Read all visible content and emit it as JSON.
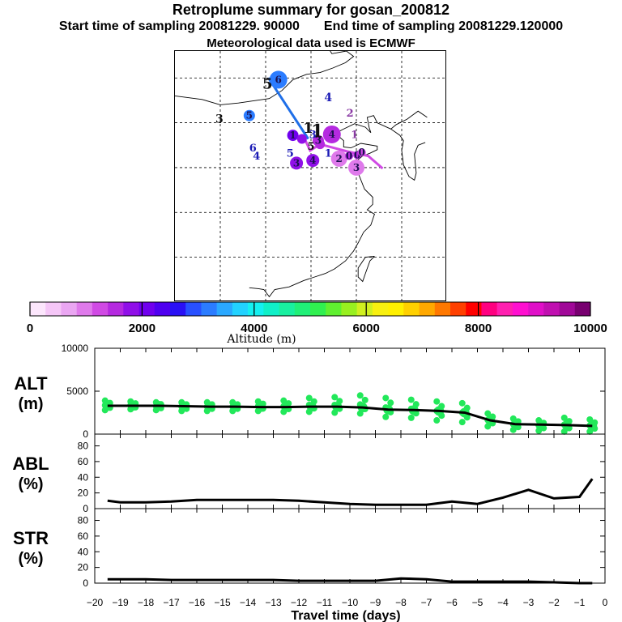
{
  "header": {
    "title": "Retroplume summary for gosan_200812",
    "start_label": "Start time of sampling 20081229. 90000",
    "end_label": "End time of sampling 20081229.120000",
    "met_label": "Meteorological data used is ECMWF"
  },
  "colorbar": {
    "label": "Altitude (m)",
    "ticks": [
      0,
      2000,
      4000,
      6000,
      8000,
      10000
    ],
    "range": [
      0,
      10000
    ],
    "colors": [
      "#fce6fc",
      "#f5c6f7",
      "#eaa6f2",
      "#df7aeb",
      "#d04ae4",
      "#b52ae0",
      "#9010e8",
      "#7000ee",
      "#4f00f0",
      "#2a10f5",
      "#2850ff",
      "#2b7cff",
      "#2aa8ff",
      "#22d2ff",
      "#14f0f0",
      "#10f0c8",
      "#18f0a0",
      "#20f078",
      "#30f050",
      "#60f030",
      "#98f020",
      "#d0f020",
      "#f8f010",
      "#fff000",
      "#ffd000",
      "#ffa800",
      "#ff7800",
      "#ff4000",
      "#ff0000",
      "#ff0080",
      "#ff20b0",
      "#ff10d0",
      "#e010c8",
      "#c010b0",
      "#a00898",
      "#780070"
    ]
  },
  "map": {
    "numbers": [
      {
        "t": "5",
        "lon": 110.2,
        "lat": 43.8,
        "size": 18,
        "color": "#111111",
        "serif": true
      },
      {
        "t": "4",
        "lon": 116.9,
        "lat": 42.4,
        "size": 14,
        "color": "#1a1ab5",
        "serif": true
      },
      {
        "t": "3",
        "lon": 104.9,
        "lat": 40.0,
        "size": 14,
        "color": "#111111",
        "serif": true
      },
      {
        "t": "2",
        "lon": 119.3,
        "lat": 40.7,
        "size": 13,
        "color": "#8a3aa4",
        "serif": true
      },
      {
        "t": "6",
        "lon": 108.6,
        "lat": 36.8,
        "size": 13,
        "color": "#1a1ab5",
        "serif": true
      },
      {
        "t": "4",
        "lon": 109.0,
        "lat": 35.9,
        "size": 13,
        "color": "#1a1ab5",
        "serif": true
      },
      {
        "t": "5",
        "lon": 112.7,
        "lat": 36.2,
        "size": 13,
        "color": "#1a1ab5",
        "serif": true
      },
      {
        "t": "1",
        "lon": 114.7,
        "lat": 38.9,
        "size": 18,
        "color": "#111111",
        "serif": true
      },
      {
        "t": "1",
        "lon": 115.7,
        "lat": 38.4,
        "size": 22,
        "color": "#111111",
        "serif": true
      },
      {
        "t": "3",
        "lon": 115.2,
        "lat": 38.3,
        "size": 13,
        "color": "#1a1ab5",
        "serif": true
      },
      {
        "t": "5",
        "lon": 115.0,
        "lat": 37.0,
        "size": 13,
        "color": "#111111",
        "serif": true
      },
      {
        "t": "1",
        "lon": 116.9,
        "lat": 36.2,
        "size": 13,
        "color": "#1a1ab5",
        "serif": true
      },
      {
        "t": "1",
        "lon": 119.8,
        "lat": 38.3,
        "size": 13,
        "color": "#8a3aa4",
        "serif": true
      }
    ],
    "dots": [
      {
        "lon": 111.4,
        "lat": 44.8,
        "r": 11,
        "color": "#2b7cff",
        "label": "6"
      },
      {
        "lon": 108.2,
        "lat": 40.8,
        "r": 7,
        "color": "#2b7cff",
        "label": "5"
      },
      {
        "lon": 113.0,
        "lat": 38.6,
        "r": 7,
        "color": "#7000ee",
        "label": "1"
      },
      {
        "lon": 114.0,
        "lat": 38.2,
        "r": 6,
        "color": "#9010e8",
        "label": ""
      },
      {
        "lon": 117.3,
        "lat": 38.7,
        "r": 11,
        "color": "#b52ae0",
        "label": "4"
      },
      {
        "lon": 116.0,
        "lat": 37.6,
        "r": 6,
        "color": "#b52ae0",
        "label": ""
      },
      {
        "lon": 115.8,
        "lat": 38.0,
        "r": 7,
        "color": "#b52ae0",
        "label": "3"
      },
      {
        "lon": 113.4,
        "lat": 35.5,
        "r": 8,
        "color": "#9010e8",
        "label": "3"
      },
      {
        "lon": 115.2,
        "lat": 35.8,
        "r": 8,
        "color": "#9010e8",
        "label": "4"
      },
      {
        "lon": 118.1,
        "lat": 36.0,
        "r": 10,
        "color": "#df7aeb",
        "label": "2"
      },
      {
        "lon": 120.0,
        "lat": 35.0,
        "r": 10,
        "color": "#df7aeb",
        "label": "3"
      },
      {
        "lon": 119.2,
        "lat": 36.3,
        "r": 5,
        "color": "#b52ae0",
        "label": "0"
      },
      {
        "lon": 120.1,
        "lat": 36.4,
        "r": 5,
        "color": "#b52ae0",
        "label": "0"
      },
      {
        "lon": 120.6,
        "lat": 36.7,
        "r": 5,
        "color": "#d04ae4",
        "label": "0"
      }
    ],
    "blue_track": [
      [
        110.3,
        45.0
      ],
      [
        114.7,
        38.2
      ]
    ],
    "purple_track": [
      [
        114.3,
        38.2
      ],
      [
        114.9,
        36.9
      ],
      [
        116.0,
        37.6
      ],
      [
        119.0,
        36.8
      ],
      [
        121.3,
        36.3
      ],
      [
        122.9,
        34.9
      ]
    ],
    "coast": [
      [
        127.6,
        37.8
      ],
      [
        126.8,
        37.5
      ],
      [
        126.4,
        36.5
      ],
      [
        126.6,
        34.4
      ],
      [
        126.4,
        33.6
      ],
      [
        125.8,
        34.0
      ],
      [
        125.2,
        35.3
      ],
      [
        125.0,
        36.9
      ],
      [
        125.2,
        38.0
      ],
      [
        124.8,
        38.6
      ],
      [
        123.8,
        39.3
      ],
      [
        122.3,
        40.0
      ],
      [
        121.9,
        40.8
      ],
      [
        121.2,
        40.6
      ],
      [
        121.4,
        39.5
      ],
      [
        121.6,
        38.9
      ],
      [
        121.0,
        39.5
      ],
      [
        119.8,
        39.9
      ],
      [
        118.4,
        39.2
      ],
      [
        117.7,
        38.8
      ],
      [
        118.6,
        38.0
      ],
      [
        118.6,
        37.3
      ],
      [
        119.4,
        37.2
      ],
      [
        120.5,
        37.7
      ],
      [
        122.3,
        37.4
      ],
      [
        122.3,
        37.0
      ],
      [
        121.5,
        36.6
      ],
      [
        120.7,
        36.3
      ],
      [
        119.6,
        35.4
      ],
      [
        120.2,
        34.4
      ],
      [
        120.9,
        32.6
      ],
      [
        121.8,
        31.7
      ],
      [
        121.8,
        30.9
      ],
      [
        121.2,
        30.3
      ],
      [
        122.0,
        29.8
      ],
      [
        121.6,
        28.6
      ],
      [
        120.8,
        27.8
      ],
      [
        120.2,
        26.6
      ],
      [
        119.7,
        25.7
      ],
      [
        118.8,
        24.6
      ],
      [
        117.6,
        23.7
      ],
      [
        116.6,
        23.2
      ],
      [
        115.4,
        22.8
      ],
      [
        114.2,
        22.4
      ],
      [
        113.5,
        22.1
      ],
      [
        112.6,
        21.7
      ],
      [
        111.0,
        21.4
      ],
      [
        110.4,
        20.6
      ],
      [
        109.8,
        21.4
      ],
      [
        109.2,
        21.5
      ],
      [
        108.2,
        21.6
      ]
    ],
    "border": [
      [
        127.8,
        40.6
      ],
      [
        126.8,
        41.3
      ],
      [
        125.6,
        40.4
      ],
      [
        124.4,
        39.8
      ],
      [
        123.8,
        39.3
      ]
    ],
    "inner": [
      [
        100.0,
        43.0
      ],
      [
        103.0,
        42.6
      ],
      [
        105.0,
        42.0
      ],
      [
        107.0,
        42.2
      ],
      [
        109.0,
        42.5
      ],
      [
        110.4,
        42.7
      ],
      [
        111.8,
        43.6
      ],
      [
        113.0,
        44.8
      ],
      [
        114.5,
        45.4
      ],
      [
        116.0,
        45.6
      ],
      [
        117.4,
        46.1
      ],
      [
        118.8,
        46.7
      ],
      [
        119.7,
        47.4
      ],
      [
        118.9,
        48.0
      ],
      [
        117.3,
        47.7
      ],
      [
        116.5,
        49.0
      ]
    ],
    "pacific_islands": [
      [
        [
          122.0,
          25.1
        ],
        [
          121.5,
          24.6
        ],
        [
          121.0,
          23.2
        ],
        [
          120.7,
          22.3
        ],
        [
          120.2,
          22.8
        ],
        [
          120.2,
          23.8
        ],
        [
          121.0,
          25.0
        ],
        [
          122.0,
          25.1
        ]
      ],
      [
        [
          130.9,
          34.0
        ],
        [
          130.4,
          33.3
        ],
        [
          130.8,
          31.8
        ],
        [
          131.4,
          31.4
        ],
        [
          131.8,
          32.8
        ],
        [
          131.0,
          33.9
        ],
        [
          130.9,
          34.0
        ]
      ]
    ]
  },
  "chart_data": [
    {
      "type": "scatter+line",
      "name": "ALT",
      "ylabel": "ALT\n(m)",
      "y_axis_label": "ALT",
      "y_unit_label": "(m)",
      "ylim": [
        0,
        10000
      ],
      "yticks": [
        0,
        5000,
        10000
      ],
      "x": [
        -19.5,
        -18.5,
        -17.5,
        -16.5,
        -15.5,
        -14.5,
        -13.5,
        -12.5,
        -11.5,
        -10.5,
        -9.5,
        -8.5,
        -7.5,
        -6.5,
        -5.5,
        -4.5,
        -3.5,
        -2.5,
        -1.5,
        -0.5
      ],
      "median": [
        3300,
        3300,
        3300,
        3250,
        3200,
        3200,
        3150,
        3150,
        3200,
        3200,
        3100,
        2850,
        2800,
        2700,
        2500,
        1600,
        1150,
        1100,
        1050,
        950
      ],
      "scatter_spread": [
        [
          2800,
          3900
        ],
        [
          2900,
          3800
        ],
        [
          2800,
          3700
        ],
        [
          2700,
          3700
        ],
        [
          2700,
          3700
        ],
        [
          2700,
          3700
        ],
        [
          2700,
          3800
        ],
        [
          2600,
          3900
        ],
        [
          2600,
          4200
        ],
        [
          2500,
          4300
        ],
        [
          2400,
          4500
        ],
        [
          2000,
          4200
        ],
        [
          1900,
          4000
        ],
        [
          1600,
          3800
        ],
        [
          1400,
          3600
        ],
        [
          900,
          2400
        ],
        [
          500,
          1800
        ],
        [
          400,
          1600
        ],
        [
          300,
          1900
        ],
        [
          300,
          1700
        ]
      ]
    },
    {
      "type": "line",
      "name": "ABL",
      "y_axis_label": "ABL",
      "y_unit_label": "(%)",
      "ylim": [
        0,
        90
      ],
      "yticks": [
        0,
        20,
        40,
        60,
        80
      ],
      "x": [
        -19.5,
        -19,
        -18,
        -17,
        -16,
        -15,
        -14,
        -13,
        -12,
        -11,
        -10,
        -9,
        -8,
        -7,
        -6,
        -5,
        -4,
        -3,
        -2,
        -1,
        -0.5
      ],
      "values": [
        10,
        8,
        8,
        9,
        11,
        11,
        11,
        11,
        10,
        8,
        6,
        5,
        5,
        5,
        9,
        6,
        14,
        24,
        13,
        15,
        38
      ]
    },
    {
      "type": "line",
      "name": "STR",
      "y_axis_label": "STR",
      "y_unit_label": "(%)",
      "ylim": [
        0,
        90
      ],
      "yticks": [
        0,
        20,
        40,
        60,
        80
      ],
      "x": [
        -19.5,
        -19,
        -18,
        -17,
        -16,
        -15,
        -14,
        -13,
        -12,
        -11,
        -10,
        -9,
        -8,
        -7,
        -6,
        -5,
        -4,
        -3,
        -2,
        -1,
        -0.5
      ],
      "values": [
        5,
        5,
        5,
        4,
        4,
        4,
        4,
        4,
        3,
        3,
        3,
        3,
        6,
        5,
        2,
        2,
        2,
        2,
        1,
        0,
        0
      ]
    }
  ],
  "x_axis": {
    "label": "Travel time (days)",
    "range": [
      -20,
      0
    ],
    "ticks": [
      -20,
      -19,
      -18,
      -17,
      -16,
      -15,
      -14,
      -13,
      -12,
      -11,
      -10,
      -9,
      -8,
      -7,
      -6,
      -5,
      -4,
      -3,
      -2,
      -1,
      0
    ]
  }
}
